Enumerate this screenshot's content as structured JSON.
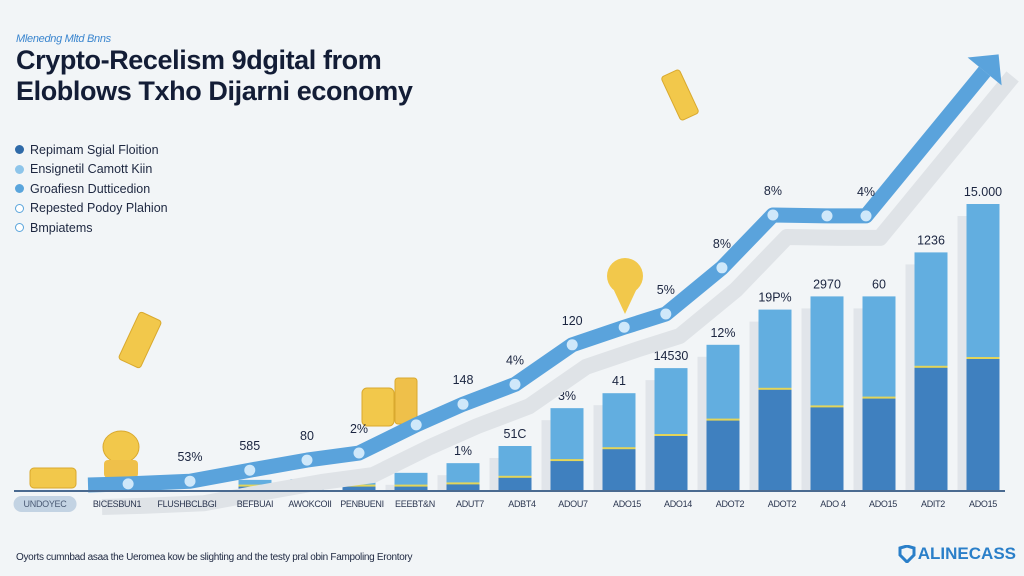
{
  "header": {
    "subtitle": "Mlenedng Mltd Bnns",
    "title_line1": "Crypto-Recelism 9dgital from",
    "title_line2": "Eloblows Txho Dijarni economy"
  },
  "legend": [
    {
      "label": "Repimam Sgial Floition",
      "color": "#2f6aa8",
      "style": "filled"
    },
    {
      "label": "Ensignetil Camott Kiin",
      "color": "#8ec5ea",
      "style": "filled"
    },
    {
      "label": "Groafiesn Dutticedion",
      "color": "#5aa5dc",
      "style": "filled"
    },
    {
      "label": "Repested Podoy Plahion",
      "color": "#5aa5dc",
      "style": "outline"
    },
    {
      "label": "Bmpiatems",
      "color": "#5aa5dc",
      "style": "outline"
    }
  ],
  "footer": {
    "caption": "Oyorts cumnbad asaa the Ueromea kow be slighting and the testy pral obin Fampoling Erontory",
    "logo": "ALINECASS"
  },
  "colors": {
    "bar_light": "#62aee0",
    "bar_dark": "#3f80bf",
    "split": "#e3d55a",
    "line": "#5aa3dc",
    "shadow": "#dfe3e7",
    "gold": "#f0c64a"
  },
  "chart_data": {
    "type": "bar",
    "title": "Crypto-Recelism 9dgital from Eloblows Txho Dijarni economy",
    "categories": [
      "UNDOYEC",
      "BICESBUN1",
      "FLUSHBCLBGI",
      "BEFBUAI",
      "AWOKCOII",
      "PENBUENI",
      "EEEBT&N",
      "ADUT7",
      "ADBT4",
      "ADOU7",
      "ADO15",
      "ADO14",
      "ADOT2",
      "ADOT2",
      "ADO 4",
      "ADO15",
      "ADIT2",
      "ADO15"
    ],
    "selected_category": "UNDOYEC",
    "ylim": [
      0,
      100
    ],
    "grid": false,
    "legend_position": "top-left",
    "bars": {
      "start_index": 3,
      "total": [
        2.3,
        2.5,
        2.7,
        3.9,
        6.1,
        10,
        18.6,
        22,
        27.7,
        33,
        41,
        44,
        44,
        54,
        65
      ],
      "lower": [
        1,
        1,
        1,
        1,
        1.5,
        3,
        6.8,
        9.5,
        12.5,
        16,
        23,
        19,
        21,
        28,
        30
      ],
      "labels": [
        "",
        "",
        "",
        "",
        "1%",
        "51C",
        "3%",
        "41",
        "14530",
        "12%",
        "19P%",
        "2970",
        "60",
        "1236",
        "15.000"
      ]
    },
    "line": {
      "x": [
        0.56,
        1.75,
        2.9,
        4,
        5,
        6.1,
        7,
        8,
        9.1,
        10.1,
        10.9,
        11.98,
        12.96,
        14,
        14.75
      ],
      "y": [
        1.4,
        2,
        4.5,
        6.8,
        8.4,
        14.8,
        19.5,
        24,
        33,
        37,
        40,
        50.5,
        62.5,
        62.3,
        62.3
      ],
      "arrow_end": {
        "x": 17.3,
        "y": 99
      },
      "labels": [
        "",
        "53%",
        "585",
        "80",
        "2%",
        "",
        "148",
        "4%",
        "120",
        "",
        "5%",
        "8%",
        "8%",
        "",
        "4%"
      ]
    }
  }
}
